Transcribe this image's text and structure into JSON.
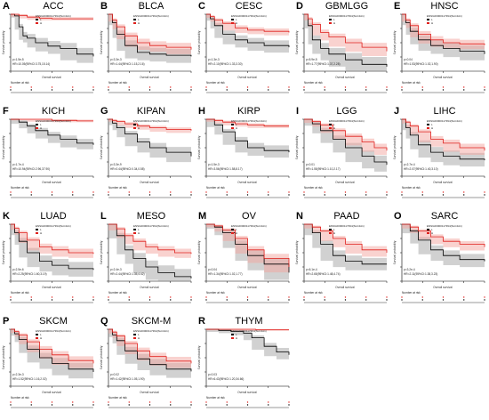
{
  "figure": {
    "panels": [
      {
        "letter": "A",
        "title": "ACC"
      },
      {
        "letter": "B",
        "title": "BLCA"
      },
      {
        "letter": "C",
        "title": "CESC"
      },
      {
        "letter": "D",
        "title": "GBMLGG"
      },
      {
        "letter": "E",
        "title": "HNSC"
      },
      {
        "letter": "F",
        "title": "KICH"
      },
      {
        "letter": "G",
        "title": "KIPAN"
      },
      {
        "letter": "H",
        "title": "KIRP"
      },
      {
        "letter": "I",
        "title": "LGG"
      },
      {
        "letter": "J",
        "title": "LIHC"
      },
      {
        "letter": "K",
        "title": "LUAD"
      },
      {
        "letter": "L",
        "title": "MESO"
      },
      {
        "letter": "M",
        "title": "OV"
      },
      {
        "letter": "N",
        "title": "PAAD"
      },
      {
        "letter": "O",
        "title": "SARC"
      },
      {
        "letter": "P",
        "title": "SKCM"
      },
      {
        "letter": "Q",
        "title": "SKCM-M"
      },
      {
        "letter": "R",
        "title": "THYM"
      }
    ],
    "common": {
      "legend_title": "ENSG00000117394(SLC2A1)",
      "legend_low": "L",
      "legend_high": "H",
      "ylabel": "Survival probability",
      "xlabel": "Overall survival",
      "risk_label": "Number at risk"
    },
    "colors": {
      "low": "#000000",
      "high": "#e0201c",
      "low_band": "#9a9a9a",
      "high_band": "#f3a6a0"
    }
  },
  "chart_data": [
    {
      "panel": "A",
      "title": "ACC",
      "type": "line",
      "ylim": [
        0,
        1
      ],
      "stats": [
        "p=1.5e-5",
        "HR=10.05(95%CI:3.75,15.14)"
      ],
      "series": [
        {
          "group": "L",
          "x": [
            0,
            0.05,
            0.1,
            0.15,
            0.2,
            0.3,
            0.45,
            0.6,
            0.8,
            1
          ],
          "values": [
            1,
            0.97,
            0.78,
            0.62,
            0.58,
            0.5,
            0.44,
            0.4,
            0.3,
            0.26
          ]
        },
        {
          "group": "H",
          "x": [
            0,
            0.1,
            0.2,
            0.35,
            0.5,
            0.7,
            1
          ],
          "values": [
            1,
            0.98,
            0.95,
            0.93,
            0.92,
            0.92,
            0.92
          ]
        }
      ]
    },
    {
      "panel": "B",
      "title": "BLCA",
      "type": "line",
      "ylim": [
        0,
        1
      ],
      "stats": [
        "p=3.3e-3",
        "HR=1.44(95%CI:1.15,2.16)"
      ],
      "series": [
        {
          "group": "L",
          "x": [
            0,
            0.05,
            0.1,
            0.2,
            0.35,
            0.5,
            0.7,
            1
          ],
          "values": [
            1,
            0.85,
            0.65,
            0.45,
            0.33,
            0.3,
            0.28,
            0.26
          ]
        },
        {
          "group": "H",
          "x": [
            0,
            0.05,
            0.1,
            0.2,
            0.35,
            0.5,
            0.7,
            1
          ],
          "values": [
            1,
            0.9,
            0.78,
            0.62,
            0.5,
            0.45,
            0.42,
            0.38
          ]
        }
      ]
    },
    {
      "panel": "C",
      "title": "CESC",
      "type": "line",
      "ylim": [
        0,
        1
      ],
      "stats": [
        "p=1.3e-3",
        "HR=2.10(95%CI:1.33,3.30)"
      ],
      "series": [
        {
          "group": "L",
          "x": [
            0,
            0.05,
            0.1,
            0.2,
            0.35,
            0.5,
            0.7,
            1
          ],
          "values": [
            1,
            0.92,
            0.8,
            0.65,
            0.55,
            0.5,
            0.45,
            0.42
          ]
        },
        {
          "group": "H",
          "x": [
            0,
            0.05,
            0.1,
            0.2,
            0.35,
            0.5,
            0.7,
            1
          ],
          "values": [
            1,
            0.96,
            0.9,
            0.84,
            0.76,
            0.72,
            0.7,
            0.68
          ]
        }
      ]
    },
    {
      "panel": "D",
      "title": "GBMLGG",
      "type": "line",
      "ylim": [
        0,
        1
      ],
      "stats": [
        "p=5.9e-5",
        "HR=1.77(95%CI:1.37,2.28)"
      ],
      "series": [
        {
          "group": "L",
          "x": [
            0,
            0.05,
            0.1,
            0.2,
            0.3,
            0.5,
            0.7,
            1
          ],
          "values": [
            1,
            0.8,
            0.55,
            0.4,
            0.3,
            0.2,
            0.12,
            0.08
          ]
        },
        {
          "group": "H",
          "x": [
            0,
            0.05,
            0.1,
            0.2,
            0.3,
            0.5,
            0.7,
            1
          ],
          "values": [
            1,
            0.92,
            0.82,
            0.68,
            0.6,
            0.5,
            0.42,
            0.35
          ]
        }
      ]
    },
    {
      "panel": "E",
      "title": "HNSC",
      "type": "line",
      "ylim": [
        0,
        1
      ],
      "stats": [
        "p=0.04",
        "HR=1.53(95%CI:1.02,1.90)"
      ],
      "series": [
        {
          "group": "L",
          "x": [
            0,
            0.05,
            0.1,
            0.2,
            0.35,
            0.5,
            0.7,
            1
          ],
          "values": [
            1,
            0.85,
            0.7,
            0.55,
            0.45,
            0.4,
            0.35,
            0.3
          ]
        },
        {
          "group": "H",
          "x": [
            0,
            0.05,
            0.1,
            0.2,
            0.35,
            0.5,
            0.7,
            1
          ],
          "values": [
            1,
            0.9,
            0.8,
            0.65,
            0.55,
            0.5,
            0.48,
            0.46
          ]
        }
      ]
    },
    {
      "panel": "F",
      "title": "KICH",
      "type": "line",
      "ylim": [
        0,
        1
      ],
      "stats": [
        "p=1.7e-4",
        "HR=10.94(95%CI:2.96,37.90)"
      ],
      "series": [
        {
          "group": "L",
          "x": [
            0,
            0.1,
            0.2,
            0.3,
            0.45,
            0.6,
            0.8,
            1
          ],
          "values": [
            1,
            0.95,
            0.88,
            0.8,
            0.72,
            0.65,
            0.58,
            0.55
          ]
        },
        {
          "group": "H",
          "x": [
            0,
            0.2,
            0.5,
            0.8,
            1
          ],
          "values": [
            1,
            1,
            0.98,
            0.97,
            0.97
          ]
        }
      ]
    },
    {
      "panel": "G",
      "title": "KIPAN",
      "type": "line",
      "ylim": [
        0,
        1
      ],
      "stats": [
        "p=3.3e-9",
        "HR=0.44(95%CI:0.34,0.58)"
      ],
      "series": [
        {
          "group": "L",
          "x": [
            0,
            0.05,
            0.1,
            0.2,
            0.35,
            0.5,
            0.7,
            1
          ],
          "values": [
            1,
            0.93,
            0.85,
            0.74,
            0.6,
            0.5,
            0.42,
            0.35
          ]
        },
        {
          "group": "H",
          "x": [
            0,
            0.05,
            0.1,
            0.2,
            0.35,
            0.5,
            0.7,
            1
          ],
          "values": [
            1,
            0.98,
            0.96,
            0.92,
            0.88,
            0.85,
            0.82,
            0.8
          ]
        }
      ]
    },
    {
      "panel": "H",
      "title": "KIRP",
      "type": "line",
      "ylim": [
        0,
        1
      ],
      "stats": [
        "p=1.5e-3",
        "HR=3.56(95%CI:1.58,8.17)"
      ],
      "series": [
        {
          "group": "L",
          "x": [
            0,
            0.1,
            0.2,
            0.35,
            0.5,
            0.7,
            1
          ],
          "values": [
            1,
            0.9,
            0.78,
            0.62,
            0.5,
            0.45,
            0.42
          ]
        },
        {
          "group": "H",
          "x": [
            0,
            0.1,
            0.2,
            0.35,
            0.5,
            0.7,
            1
          ],
          "values": [
            1,
            0.98,
            0.95,
            0.92,
            0.9,
            0.88,
            0.88
          ]
        }
      ]
    },
    {
      "panel": "I",
      "title": "LGG",
      "type": "line",
      "ylim": [
        0,
        1
      ],
      "stats": [
        "p=0.01",
        "HR=1.55(95%CI:1.10,2.17)"
      ],
      "series": [
        {
          "group": "L",
          "x": [
            0,
            0.1,
            0.2,
            0.35,
            0.5,
            0.7,
            0.85,
            1
          ],
          "values": [
            1,
            0.92,
            0.8,
            0.65,
            0.5,
            0.35,
            0.25,
            0.2
          ]
        },
        {
          "group": "H",
          "x": [
            0,
            0.1,
            0.2,
            0.35,
            0.5,
            0.7,
            0.85,
            1
          ],
          "values": [
            1,
            0.96,
            0.9,
            0.8,
            0.7,
            0.6,
            0.5,
            0.45
          ]
        }
      ]
    },
    {
      "panel": "J",
      "title": "LIHC",
      "type": "line",
      "ylim": [
        0,
        1
      ],
      "stats": [
        "p=2.7e-4",
        "HR=2.07(95%CI:1.40,3.10)"
      ],
      "series": [
        {
          "group": "L",
          "x": [
            0,
            0.05,
            0.1,
            0.2,
            0.35,
            0.5,
            0.7,
            1
          ],
          "values": [
            1,
            0.85,
            0.72,
            0.55,
            0.42,
            0.35,
            0.3,
            0.28
          ]
        },
        {
          "group": "H",
          "x": [
            0,
            0.05,
            0.1,
            0.2,
            0.35,
            0.5,
            0.7,
            1
          ],
          "values": [
            1,
            0.95,
            0.88,
            0.78,
            0.65,
            0.58,
            0.5,
            0.45
          ]
        }
      ]
    },
    {
      "panel": "K",
      "title": "LUAD",
      "type": "line",
      "ylim": [
        0,
        1
      ],
      "stats": [
        "p=2.5e-6",
        "HR=2.25(95%CI:1.60,3.19)"
      ],
      "series": [
        {
          "group": "L",
          "x": [
            0,
            0.05,
            0.1,
            0.2,
            0.35,
            0.5,
            0.7,
            1
          ],
          "values": [
            1,
            0.85,
            0.7,
            0.5,
            0.35,
            0.28,
            0.22,
            0.2
          ]
        },
        {
          "group": "H",
          "x": [
            0,
            0.05,
            0.1,
            0.2,
            0.35,
            0.5,
            0.7,
            1
          ],
          "values": [
            1,
            0.93,
            0.85,
            0.72,
            0.6,
            0.55,
            0.5,
            0.48
          ]
        }
      ]
    },
    {
      "panel": "L",
      "title": "MESO",
      "type": "line",
      "ylim": [
        0,
        1
      ],
      "stats": [
        "p=2.4e-3",
        "HR=2.44(95%CI:1.35,4.42)"
      ],
      "series": [
        {
          "group": "L",
          "x": [
            0,
            0.1,
            0.2,
            0.3,
            0.45,
            0.6,
            0.8,
            1
          ],
          "values": [
            1,
            0.8,
            0.55,
            0.4,
            0.25,
            0.15,
            0.08,
            0.05
          ]
        },
        {
          "group": "H",
          "x": [
            0,
            0.1,
            0.2,
            0.3,
            0.45,
            0.6,
            0.8,
            1
          ],
          "values": [
            1,
            0.92,
            0.8,
            0.7,
            0.6,
            0.55,
            0.5,
            0.48
          ]
        }
      ]
    },
    {
      "panel": "M",
      "title": "OV",
      "type": "line",
      "ylim": [
        0,
        1
      ],
      "stats": [
        "p=0.04",
        "HR=1.34(95%CI:1.02,1.77)"
      ],
      "series": [
        {
          "group": "L",
          "x": [
            0,
            0.1,
            0.2,
            0.35,
            0.5,
            0.7,
            1
          ],
          "values": [
            1,
            0.95,
            0.85,
            0.65,
            0.45,
            0.3,
            0.15
          ]
        },
        {
          "group": "H",
          "x": [
            0,
            0.1,
            0.2,
            0.35,
            0.5,
            0.7,
            1
          ],
          "values": [
            1,
            0.97,
            0.9,
            0.75,
            0.55,
            0.4,
            0.25
          ]
        }
      ]
    },
    {
      "panel": "N",
      "title": "PAAD",
      "type": "line",
      "ylim": [
        0,
        1
      ],
      "stats": [
        "p=6.1e-4",
        "HR=2.65(95%CI:1.48,4.74)"
      ],
      "series": [
        {
          "group": "L",
          "x": [
            0,
            0.1,
            0.2,
            0.35,
            0.5,
            0.7,
            1
          ],
          "values": [
            1,
            0.85,
            0.65,
            0.45,
            0.35,
            0.3,
            0.3
          ]
        },
        {
          "group": "H",
          "x": [
            0,
            0.1,
            0.2,
            0.35,
            0.5,
            0.7,
            1
          ],
          "values": [
            1,
            0.95,
            0.88,
            0.75,
            0.65,
            0.55,
            0.5
          ]
        }
      ]
    },
    {
      "panel": "O",
      "title": "SARC",
      "type": "line",
      "ylim": [
        0,
        1
      ],
      "stats": [
        "p=3.2e-4",
        "HR=2.11(95%CI:1.38,3.23)"
      ],
      "series": [
        {
          "group": "L",
          "x": [
            0,
            0.1,
            0.2,
            0.35,
            0.5,
            0.7,
            1
          ],
          "values": [
            1,
            0.88,
            0.72,
            0.55,
            0.45,
            0.38,
            0.35
          ]
        },
        {
          "group": "H",
          "x": [
            0,
            0.1,
            0.2,
            0.35,
            0.5,
            0.7,
            1
          ],
          "values": [
            1,
            0.95,
            0.88,
            0.78,
            0.7,
            0.65,
            0.6
          ]
        }
      ]
    },
    {
      "panel": "P",
      "title": "SKCM",
      "type": "line",
      "ylim": [
        0,
        1
      ],
      "stats": [
        "p=2.3e-3",
        "HR=1.52(95%CI:1.16,2.02)"
      ],
      "series": [
        {
          "group": "L",
          "x": [
            0,
            0.05,
            0.1,
            0.2,
            0.35,
            0.5,
            0.7,
            1
          ],
          "values": [
            1,
            0.92,
            0.82,
            0.65,
            0.5,
            0.4,
            0.3,
            0.25
          ]
        },
        {
          "group": "H",
          "x": [
            0,
            0.05,
            0.1,
            0.2,
            0.35,
            0.5,
            0.7,
            1
          ],
          "values": [
            1,
            0.96,
            0.9,
            0.78,
            0.65,
            0.55,
            0.45,
            0.4
          ]
        }
      ]
    },
    {
      "panel": "Q",
      "title": "SKCM-M",
      "type": "line",
      "ylim": [
        0,
        1
      ],
      "stats": [
        "p=0.02",
        "HR=1.42(95%CI:1.05,1.90)"
      ],
      "series": [
        {
          "group": "L",
          "x": [
            0,
            0.05,
            0.1,
            0.2,
            0.35,
            0.5,
            0.7,
            1
          ],
          "values": [
            1,
            0.9,
            0.8,
            0.62,
            0.48,
            0.38,
            0.3,
            0.26
          ]
        },
        {
          "group": "H",
          "x": [
            0,
            0.05,
            0.1,
            0.2,
            0.35,
            0.5,
            0.7,
            1
          ],
          "values": [
            1,
            0.95,
            0.88,
            0.75,
            0.62,
            0.52,
            0.44,
            0.4
          ]
        }
      ]
    },
    {
      "panel": "R",
      "title": "THYM",
      "type": "line",
      "ylim": [
        0,
        1
      ],
      "stats": [
        "p=0.03",
        "HR=6.43(95%CI:1.20,34.66)"
      ],
      "series": [
        {
          "group": "L",
          "x": [
            0,
            0.15,
            0.3,
            0.45,
            0.55,
            0.7,
            0.85,
            1
          ],
          "values": [
            1,
            0.98,
            0.96,
            0.93,
            0.85,
            0.7,
            0.6,
            0.55
          ]
        },
        {
          "group": "H",
          "x": [
            0,
            0.3,
            0.6,
            1
          ],
          "values": [
            1,
            1,
            0.99,
            0.99
          ]
        }
      ]
    }
  ]
}
